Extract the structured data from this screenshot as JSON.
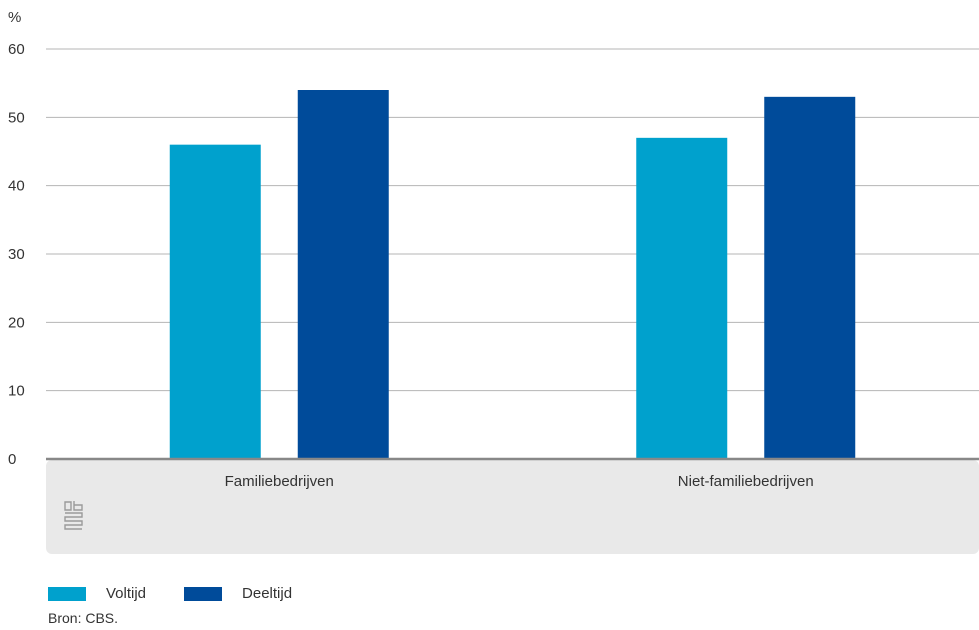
{
  "chart_data": {
    "type": "bar",
    "unit_label": "%",
    "categories": [
      "Familiebedrijven",
      "Niet-familiebedrijven"
    ],
    "series": [
      {
        "name": "Voltijd",
        "values": [
          46,
          47
        ],
        "color": "#00a1cd"
      },
      {
        "name": "Deeltijd",
        "values": [
          54,
          53
        ],
        "color": "#004b9a"
      }
    ],
    "ylim": [
      0,
      60
    ],
    "yticks": [
      0,
      10,
      20,
      30,
      40,
      50,
      60
    ],
    "grid": true,
    "legend_position": "bottom-left"
  },
  "source": "Bron: CBS.",
  "logo": {
    "icon": "cbs-logo-icon"
  }
}
